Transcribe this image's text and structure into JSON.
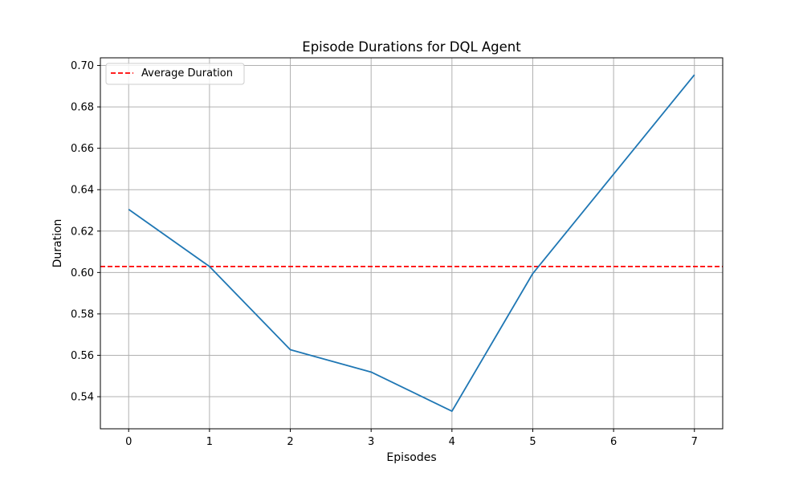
{
  "chart_data": {
    "type": "line",
    "title": "Episode Durations for DQL Agent",
    "xlabel": "Episodes",
    "ylabel": "Duration",
    "x": [
      0,
      1,
      2,
      3,
      4,
      5,
      6,
      7
    ],
    "series": [
      {
        "values": [
          0.6305,
          0.6029,
          0.5627,
          0.5519,
          0.533,
          0.5995,
          0.6475,
          0.6955
        ],
        "color": "#1f77b4"
      }
    ],
    "reference_lines": [
      {
        "name": "Average Duration",
        "value": 0.6029,
        "color": "#ff0000",
        "style": "dashed"
      }
    ],
    "xlim": [
      -0.35,
      7.35
    ],
    "ylim": [
      0.5245,
      0.7037
    ],
    "xticks": [
      0,
      1,
      2,
      3,
      4,
      5,
      6,
      7
    ],
    "xtick_labels": [
      "0",
      "1",
      "2",
      "3",
      "4",
      "5",
      "6",
      "7"
    ],
    "yticks": [
      0.54,
      0.56,
      0.58,
      0.6,
      0.62,
      0.64,
      0.66,
      0.68,
      0.7
    ],
    "ytick_labels": [
      "0.54",
      "0.56",
      "0.58",
      "0.60",
      "0.62",
      "0.64",
      "0.66",
      "0.68",
      "0.70"
    ],
    "grid": true,
    "grid_color": "#b0b0b0",
    "legend": "top-left",
    "legend_entries": [
      "Average Duration"
    ]
  }
}
